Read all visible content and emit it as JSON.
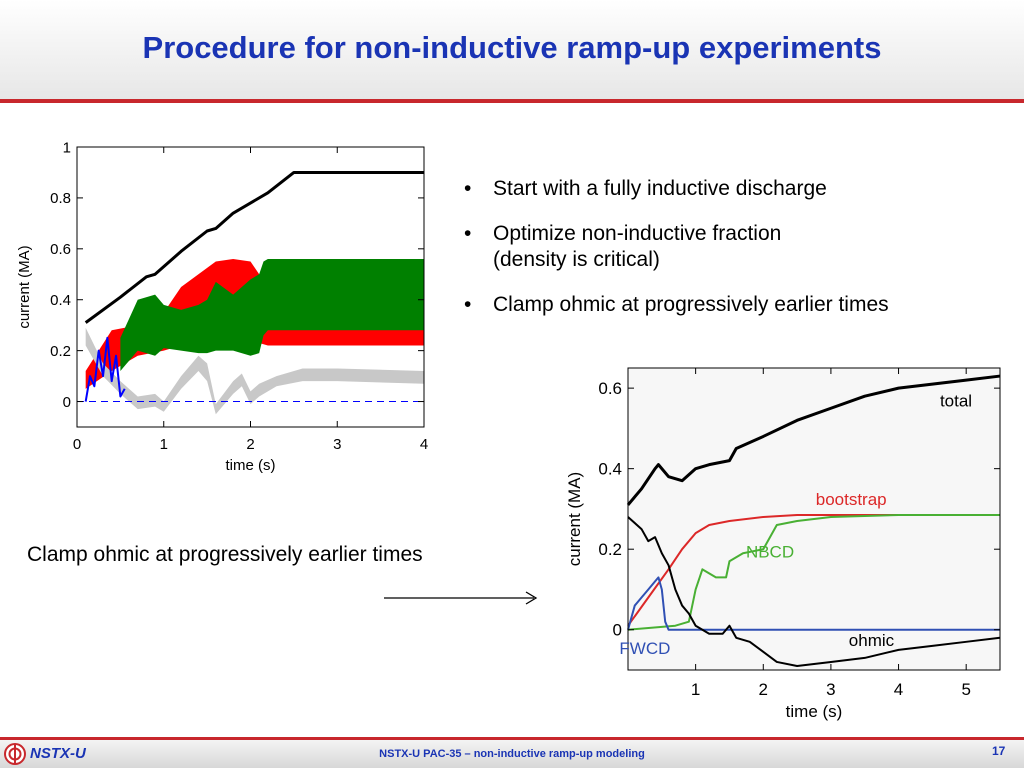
{
  "slide": {
    "title": "Procedure for non-inductive ramp-up experiments",
    "bullets": [
      "Start with a fully inductive discharge",
      "Optimize non-inductive fraction",
      "(density is critical)",
      "Clamp ohmic at progressively earlier times"
    ],
    "caption": "Clamp ohmic at progressively earlier times",
    "footer": {
      "logo_text": "NSTX-U",
      "center_text": "NSTX-U PAC-35 – non-inductive ramp-up modeling",
      "page_number": "17"
    }
  },
  "colors": {
    "title": "#1a34b4",
    "accent_red": "#c8282d",
    "total": "#000000",
    "bootstrap": "#dc2828",
    "nbcd": "#49b034",
    "fwcd": "#3050b4",
    "ohmic": "#000000",
    "red_band": "#ff0000",
    "green_band": "#008000",
    "grey_band": "#c8c8c8",
    "blue_trace": "#0000ff"
  },
  "chart_data": [
    {
      "type": "line",
      "xlabel": "time (s)",
      "ylabel": "current (MA)",
      "xlim": [
        0,
        4
      ],
      "ylim": [
        -0.1,
        1
      ],
      "xticks": [
        "0",
        "1",
        "2",
        "3",
        "4"
      ],
      "yticks": [
        "0",
        "0.2",
        "0.4",
        "0.6",
        "0.8",
        "1"
      ],
      "bands": [
        {
          "name": "red",
          "x": [
            0.1,
            0.4,
            0.7,
            1.0,
            1.2,
            1.4,
            1.6,
            1.8,
            2.0,
            2.1,
            2.2,
            2.5,
            3.0,
            4.0
          ],
          "lo": [
            0.05,
            0.12,
            0.18,
            0.2,
            0.22,
            0.24,
            0.25,
            0.25,
            0.26,
            0.23,
            0.22,
            0.22,
            0.22,
            0.22
          ],
          "hi": [
            0.12,
            0.28,
            0.3,
            0.35,
            0.45,
            0.5,
            0.55,
            0.56,
            0.55,
            0.5,
            0.35,
            0.32,
            0.3,
            0.3
          ]
        },
        {
          "name": "green",
          "x": [
            0.5,
            0.7,
            0.9,
            1.0,
            1.2,
            1.4,
            1.5,
            1.6,
            1.8,
            2.0,
            2.1,
            2.15,
            2.2,
            2.5,
            3.0,
            4.0
          ],
          "lo": [
            0.12,
            0.2,
            0.18,
            0.21,
            0.2,
            0.19,
            0.19,
            0.2,
            0.2,
            0.18,
            0.19,
            0.26,
            0.28,
            0.28,
            0.28,
            0.28
          ],
          "hi": [
            0.25,
            0.4,
            0.42,
            0.38,
            0.36,
            0.38,
            0.4,
            0.47,
            0.42,
            0.48,
            0.5,
            0.55,
            0.56,
            0.56,
            0.56,
            0.56
          ]
        },
        {
          "name": "grey",
          "x": [
            0.1,
            0.3,
            0.5,
            0.7,
            0.9,
            1.0,
            1.2,
            1.4,
            1.5,
            1.6,
            1.8,
            1.9,
            2.0,
            2.1,
            2.3,
            2.6,
            3.0,
            4.0
          ],
          "lo": [
            0.22,
            0.1,
            0.03,
            -0.03,
            -0.02,
            -0.04,
            0.05,
            0.12,
            0.08,
            -0.05,
            0.03,
            0.06,
            -0.01,
            0.02,
            0.06,
            0.08,
            0.08,
            0.07
          ],
          "hi": [
            0.29,
            0.15,
            0.08,
            0.02,
            0.03,
            0.0,
            0.1,
            0.18,
            0.15,
            -0.01,
            0.08,
            0.11,
            0.04,
            0.07,
            0.1,
            0.13,
            0.13,
            0.12
          ]
        }
      ],
      "series": [
        {
          "name": "total",
          "x": [
            0.1,
            0.5,
            0.8,
            0.9,
            1.2,
            1.5,
            1.6,
            1.8,
            2.2,
            2.5,
            3.0,
            4.0
          ],
          "y": [
            0.31,
            0.41,
            0.49,
            0.5,
            0.59,
            0.67,
            0.68,
            0.74,
            0.82,
            0.9,
            0.9,
            0.9
          ]
        },
        {
          "name": "blue",
          "x": [
            0.1,
            0.15,
            0.2,
            0.25,
            0.3,
            0.35,
            0.4,
            0.45,
            0.5,
            0.55
          ],
          "y": [
            0.0,
            0.1,
            0.06,
            0.2,
            0.1,
            0.25,
            0.08,
            0.18,
            0.02,
            0.05
          ]
        },
        {
          "name": "zero",
          "x": [
            0,
            4
          ],
          "y": [
            0,
            0
          ]
        }
      ]
    },
    {
      "type": "line",
      "xlabel": "time (s)",
      "ylabel": "current (MA)",
      "xlim": [
        0,
        5.5
      ],
      "ylim": [
        -0.1,
        0.65
      ],
      "xticks": [
        "1",
        "2",
        "3",
        "4",
        "5"
      ],
      "yticks": [
        "0",
        "0.2",
        "0.4",
        "0.6"
      ],
      "series": [
        {
          "name": "total",
          "x": [
            0,
            0.2,
            0.4,
            0.45,
            0.6,
            0.8,
            1.0,
            1.2,
            1.5,
            1.6,
            2.0,
            2.5,
            3.0,
            3.5,
            4.0,
            4.5,
            5.0,
            5.5
          ],
          "y": [
            0.31,
            0.35,
            0.4,
            0.41,
            0.38,
            0.37,
            0.4,
            0.41,
            0.42,
            0.45,
            0.48,
            0.52,
            0.55,
            0.58,
            0.6,
            0.61,
            0.62,
            0.63
          ]
        },
        {
          "name": "bootstrap",
          "x": [
            0,
            0.3,
            0.6,
            0.8,
            1.0,
            1.2,
            1.5,
            2.0,
            2.5,
            3.0,
            4.0,
            5.0,
            5.5
          ],
          "y": [
            0.01,
            0.08,
            0.15,
            0.2,
            0.24,
            0.26,
            0.27,
            0.28,
            0.285,
            0.285,
            0.285,
            0.285,
            0.285
          ]
        },
        {
          "name": "NBCD",
          "x": [
            0,
            0.7,
            0.9,
            1.0,
            1.1,
            1.3,
            1.45,
            1.5,
            1.7,
            2.0,
            2.2,
            2.5,
            3.0,
            4.0,
            5.0,
            5.5
          ],
          "y": [
            0.0,
            0.01,
            0.02,
            0.1,
            0.15,
            0.13,
            0.13,
            0.17,
            0.19,
            0.2,
            0.26,
            0.27,
            0.28,
            0.285,
            0.285,
            0.285
          ]
        },
        {
          "name": "FWCD",
          "x": [
            0,
            0.1,
            0.2,
            0.3,
            0.4,
            0.45,
            0.5,
            0.55,
            0.6,
            5.5
          ],
          "y": [
            0.0,
            0.06,
            0.08,
            0.1,
            0.12,
            0.13,
            0.1,
            0.02,
            0.0,
            0.0
          ]
        },
        {
          "name": "ohmic",
          "x": [
            0,
            0.2,
            0.3,
            0.4,
            0.5,
            0.6,
            0.7,
            0.8,
            0.9,
            1.0,
            1.2,
            1.4,
            1.5,
            1.6,
            1.8,
            2.2,
            2.5,
            3.0,
            3.5,
            4.0,
            4.5,
            5.0,
            5.5
          ],
          "y": [
            0.28,
            0.25,
            0.22,
            0.23,
            0.19,
            0.16,
            0.1,
            0.06,
            0.04,
            0.01,
            -0.01,
            -0.01,
            0.01,
            -0.02,
            -0.03,
            -0.08,
            -0.09,
            -0.08,
            -0.07,
            -0.05,
            -0.04,
            -0.03,
            -0.02
          ]
        }
      ],
      "labels": [
        {
          "text": "total",
          "series": "total",
          "x": 4.85,
          "y": 0.555
        },
        {
          "text": "bootstrap",
          "series": "bootstrap",
          "x": 3.3,
          "y": 0.31
        },
        {
          "text": "NBCD",
          "series": "NBCD",
          "x": 2.1,
          "y": 0.18
        },
        {
          "text": "FWCD",
          "series": "FWCD",
          "x": 0.25,
          "y": -0.06
        },
        {
          "text": "ohmic",
          "series": "ohmic",
          "x": 3.6,
          "y": -0.04
        }
      ]
    }
  ]
}
